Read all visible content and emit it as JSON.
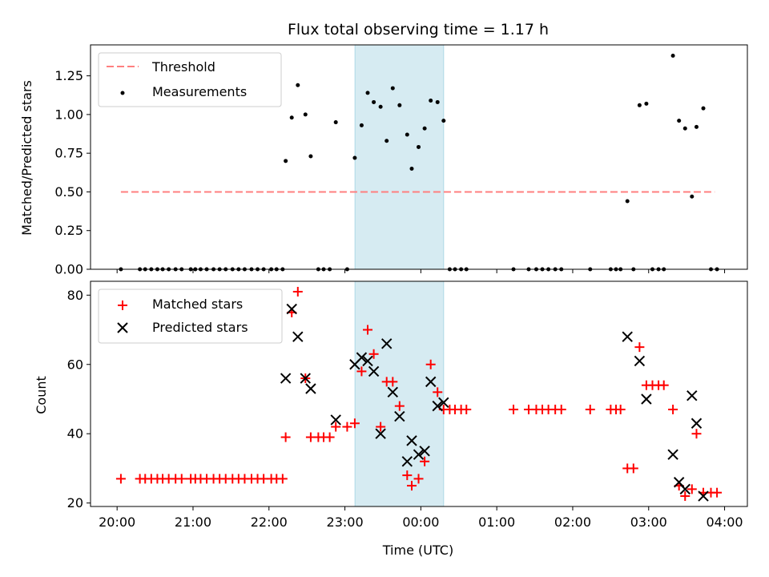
{
  "title": "Flux total observing time = 1.17 h",
  "colors": {
    "threshold": "#ff7f7f",
    "measurement": "#000000",
    "matched": "#ff0000",
    "predicted": "#000000",
    "shade": "#add8e6"
  },
  "chart_data": [
    {
      "type": "scatter",
      "panel": "top",
      "ylabel": "Matched/Predicted stars",
      "ylim": [
        0,
        1.45
      ],
      "xlim": [
        19.65,
        28.3
      ],
      "yticks": [
        0,
        0.25,
        0.5,
        0.75,
        1.0,
        1.25
      ],
      "yticklabels": [
        "0.00",
        "0.25",
        "0.50",
        "0.75",
        "1.00",
        "1.25"
      ],
      "shaded_interval": [
        23.133,
        24.3
      ],
      "legend": {
        "placement": "upper-left",
        "entries": [
          "Threshold",
          "Measurements"
        ]
      },
      "threshold": {
        "name": "Threshold",
        "y": 0.5,
        "x": [
          20.05,
          27.87
        ]
      },
      "measurements": {
        "name": "Measurements",
        "x": [
          20.05,
          20.3,
          20.37,
          20.45,
          20.53,
          20.6,
          20.68,
          20.77,
          20.85,
          20.97,
          21.03,
          21.1,
          21.18,
          21.27,
          21.35,
          21.43,
          21.52,
          21.6,
          21.68,
          21.77,
          21.85,
          21.93,
          22.03,
          22.1,
          22.18,
          22.22,
          22.3,
          22.38,
          22.48,
          22.55,
          22.65,
          22.72,
          22.8,
          22.88,
          23.03,
          23.13,
          23.22,
          23.3,
          23.38,
          23.47,
          23.55,
          23.63,
          23.72,
          23.82,
          23.88,
          23.97,
          24.05,
          24.13,
          24.22,
          24.3,
          24.38,
          24.45,
          24.53,
          24.6,
          25.22,
          25.42,
          25.52,
          25.6,
          25.68,
          25.77,
          25.85,
          26.23,
          26.5,
          26.57,
          26.63,
          26.72,
          26.8,
          26.88,
          26.97,
          27.05,
          27.13,
          27.2,
          27.32,
          27.4,
          27.48,
          27.57,
          27.63,
          27.72,
          27.82,
          27.9
        ],
        "y": [
          0.0,
          0.0,
          0.0,
          0.0,
          0.0,
          0.0,
          0.0,
          0.0,
          0.0,
          0.0,
          0.0,
          0.0,
          0.0,
          0.0,
          0.0,
          0.0,
          0.0,
          0.0,
          0.0,
          0.0,
          0.0,
          0.0,
          0.0,
          0.0,
          0.0,
          0.7,
          0.98,
          1.19,
          1.0,
          0.73,
          0.0,
          0.0,
          0.0,
          0.95,
          0.0,
          0.72,
          0.93,
          1.14,
          1.08,
          1.05,
          0.83,
          1.17,
          1.06,
          0.87,
          0.65,
          0.79,
          0.91,
          1.09,
          1.08,
          0.96,
          0.0,
          0.0,
          0.0,
          0.0,
          0.0,
          0.0,
          0.0,
          0.0,
          0.0,
          0.0,
          0.0,
          0.0,
          0.0,
          0.0,
          0.0,
          0.44,
          0.0,
          1.06,
          1.07,
          0.0,
          0.0,
          0.0,
          1.38,
          0.96,
          0.91,
          0.47,
          0.92,
          1.04,
          0.0,
          0.0
        ]
      }
    },
    {
      "type": "scatter",
      "panel": "bottom",
      "xlabel": "Time (UTC)",
      "ylabel": "Count",
      "ylim": [
        19,
        84
      ],
      "xlim": [
        19.65,
        28.3
      ],
      "yticks": [
        20,
        40,
        60,
        80
      ],
      "xticks": [
        20,
        21,
        22,
        23,
        24,
        25,
        26,
        27,
        28
      ],
      "xticklabels": [
        "20:00",
        "21:00",
        "22:00",
        "23:00",
        "00:00",
        "01:00",
        "02:00",
        "03:00",
        "04:00"
      ],
      "shaded_interval": [
        23.133,
        24.3
      ],
      "legend": {
        "placement": "upper-left",
        "entries": [
          "Matched stars",
          "Predicted stars"
        ]
      },
      "series": [
        {
          "name": "Matched stars",
          "marker": "plus",
          "x": [
            20.05,
            20.3,
            20.37,
            20.45,
            20.53,
            20.6,
            20.68,
            20.77,
            20.85,
            20.97,
            21.03,
            21.1,
            21.18,
            21.27,
            21.35,
            21.43,
            21.52,
            21.6,
            21.68,
            21.77,
            21.85,
            21.93,
            22.03,
            22.1,
            22.18,
            22.22,
            22.3,
            22.38,
            22.48,
            22.55,
            22.65,
            22.72,
            22.8,
            22.88,
            23.03,
            23.13,
            23.22,
            23.3,
            23.38,
            23.47,
            23.55,
            23.63,
            23.72,
            23.82,
            23.88,
            23.97,
            24.05,
            24.13,
            24.22,
            24.3,
            24.38,
            24.45,
            24.53,
            24.6,
            25.22,
            25.42,
            25.52,
            25.6,
            25.68,
            25.77,
            25.85,
            26.23,
            26.5,
            26.57,
            26.63,
            26.72,
            26.8,
            26.88,
            26.97,
            27.05,
            27.13,
            27.2,
            27.32,
            27.4,
            27.48,
            27.57,
            27.63,
            27.72,
            27.82,
            27.9
          ],
          "y": [
            27,
            27,
            27,
            27,
            27,
            27,
            27,
            27,
            27,
            27,
            27,
            27,
            27,
            27,
            27,
            27,
            27,
            27,
            27,
            27,
            27,
            27,
            27,
            27,
            27,
            39,
            75,
            81,
            56,
            39,
            39,
            39,
            39,
            42,
            42,
            43,
            58,
            70,
            63,
            42,
            55,
            55,
            48,
            28,
            25,
            27,
            32,
            60,
            52,
            47,
            47,
            47,
            47,
            47,
            47,
            47,
            47,
            47,
            47,
            47,
            47,
            47,
            47,
            47,
            47,
            30,
            30,
            65,
            54,
            54,
            54,
            54,
            47,
            25,
            22,
            24,
            40,
            23,
            23,
            23
          ]
        },
        {
          "name": "Predicted stars",
          "marker": "x",
          "x": [
            22.22,
            22.3,
            22.38,
            22.48,
            22.55,
            22.88,
            23.13,
            23.22,
            23.3,
            23.38,
            23.47,
            23.55,
            23.63,
            23.72,
            23.82,
            23.88,
            23.97,
            24.05,
            24.13,
            24.22,
            24.3,
            26.72,
            26.88,
            26.97,
            27.32,
            27.4,
            27.48,
            27.57,
            27.63,
            27.72
          ],
          "y": [
            56,
            76,
            68,
            56,
            53,
            44,
            60,
            62,
            61,
            58,
            40,
            66,
            52,
            45,
            32,
            38,
            34,
            35,
            55,
            48,
            49,
            68,
            61,
            50,
            34,
            26,
            24,
            51,
            43,
            22
          ]
        }
      ]
    }
  ]
}
